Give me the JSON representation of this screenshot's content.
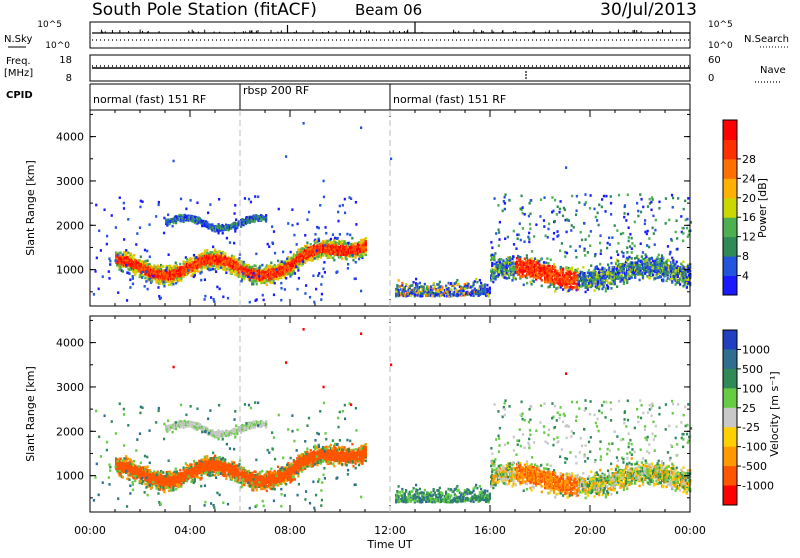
{
  "header": {
    "station": "South Pole Station (fitACF)",
    "beam": "Beam 06",
    "date": "30/Jul/2013"
  },
  "strip_labels": {
    "nsky": "N.Sky",
    "nsearch": "N.Search",
    "freq": "Freq.",
    "mhz": "[MHz]",
    "nave": "Nave",
    "cpid": "CPID",
    "nsky_ticks": [
      "10^5",
      "10^0"
    ],
    "nsearch_ticks": [
      "10^5",
      "10^0"
    ],
    "freq_ticks": [
      "18",
      "8"
    ],
    "nave_ticks": [
      "60",
      "0"
    ]
  },
  "cpid_segments": [
    {
      "label": "normal (fast) 151 RF",
      "start_h": 0,
      "end_h": 6
    },
    {
      "label": "rbsp 200 RF",
      "start_h": 6,
      "end_h": 12
    },
    {
      "label": "normal (fast) 151 RF",
      "start_h": 12,
      "end_h": 24
    }
  ],
  "chart_data": [
    {
      "type": "heatmap",
      "panel": "power",
      "xlabel": "",
      "ylabel": "Slant Range [km]",
      "xlim_hours": [
        0,
        24
      ],
      "ylim_km": [
        180,
        4600
      ],
      "y_ticks": [
        "1000",
        "2000",
        "3000",
        "4000"
      ],
      "colorbar": {
        "label": "Power [dB]",
        "ticks": [
          "4",
          "8",
          "12",
          "16",
          "20",
          "24",
          "28"
        ],
        "range": [
          0,
          30
        ],
        "colors": [
          "#1a1aff",
          "#2255dd",
          "#2e8b57",
          "#4caf50",
          "#c8d800",
          "#ffb000",
          "#ff7000",
          "#ff3000",
          "#ff0000"
        ]
      }
    },
    {
      "type": "heatmap",
      "panel": "velocity",
      "xlabel": "Time UT",
      "ylabel": "Slant Range [km]",
      "xlim_hours": [
        0,
        24
      ],
      "ylim_km": [
        180,
        4600
      ],
      "y_ticks": [
        "1000",
        "2000",
        "3000",
        "4000"
      ],
      "x_ticks": [
        "00:00",
        "04:00",
        "08:00",
        "12:00",
        "16:00",
        "20:00",
        "00:00"
      ],
      "colorbar": {
        "label": "Velocity [m s⁻¹]",
        "ticks": [
          "1000",
          "500",
          "100",
          "25",
          "-25",
          "-100",
          "-500",
          "-1000"
        ],
        "colors": [
          "#2040c0",
          "#2e6e8e",
          "#2e8b57",
          "#66cc44",
          "#c8c8c8",
          "#ffd000",
          "#ff9900",
          "#ff5500",
          "#ff0000"
        ]
      }
    }
  ]
}
